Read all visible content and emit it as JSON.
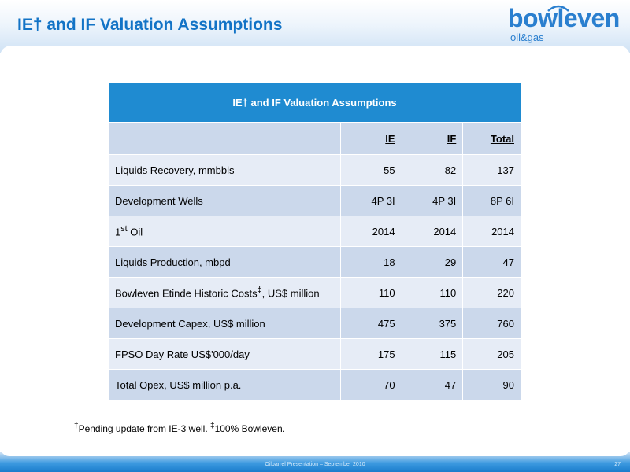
{
  "slide": {
    "title": "IE† and IF Valuation Assumptions"
  },
  "logo": {
    "word": "bowleven",
    "sub": "oil&gas"
  },
  "table": {
    "caption": "IE† and IF Valuation Assumptions",
    "columns": [
      "IE",
      "IF",
      "Total"
    ],
    "rows": [
      {
        "label_main": "Liquids Recovery, mmbbls",
        "values": [
          "55",
          "82",
          "137"
        ]
      },
      {
        "label_main": "Development Wells",
        "values": [
          "4P 3I",
          "4P 3I",
          "8P 6I"
        ]
      },
      {
        "label_pre": "1",
        "label_sup": "st",
        "label_post": " Oil",
        "values": [
          "2014",
          "2014",
          "2014"
        ]
      },
      {
        "label_main": "Liquids Production, mbpd",
        "values": [
          "18",
          "29",
          "47"
        ]
      },
      {
        "label_pre": "Bowleven Etinde Historic Costs",
        "label_sup": "‡",
        "label_post": ", US$ million",
        "values": [
          "110",
          "110",
          "220"
        ]
      },
      {
        "label_main": "Development Capex, US$ million",
        "values": [
          "475",
          "375",
          "760"
        ]
      },
      {
        "label_main": "FPSO Day Rate US$'000/day",
        "values": [
          "175",
          "115",
          "205"
        ]
      },
      {
        "label_main": "Total Opex, US$ million p.a.",
        "values": [
          "70",
          "47",
          "90"
        ]
      }
    ]
  },
  "footnote": {
    "mark1": "†",
    "text1": "Pending update from IE-3 well.  ",
    "mark2": "‡",
    "text2": "100% Bowleven."
  },
  "footer": {
    "text": "Oilbarrel Presentation – September 2010",
    "page": "27"
  },
  "colors": {
    "accent": "#1273c6",
    "table_header": "#1f8bd1",
    "row_dark": "#cbd8eb",
    "row_light": "#e6ecf6"
  }
}
